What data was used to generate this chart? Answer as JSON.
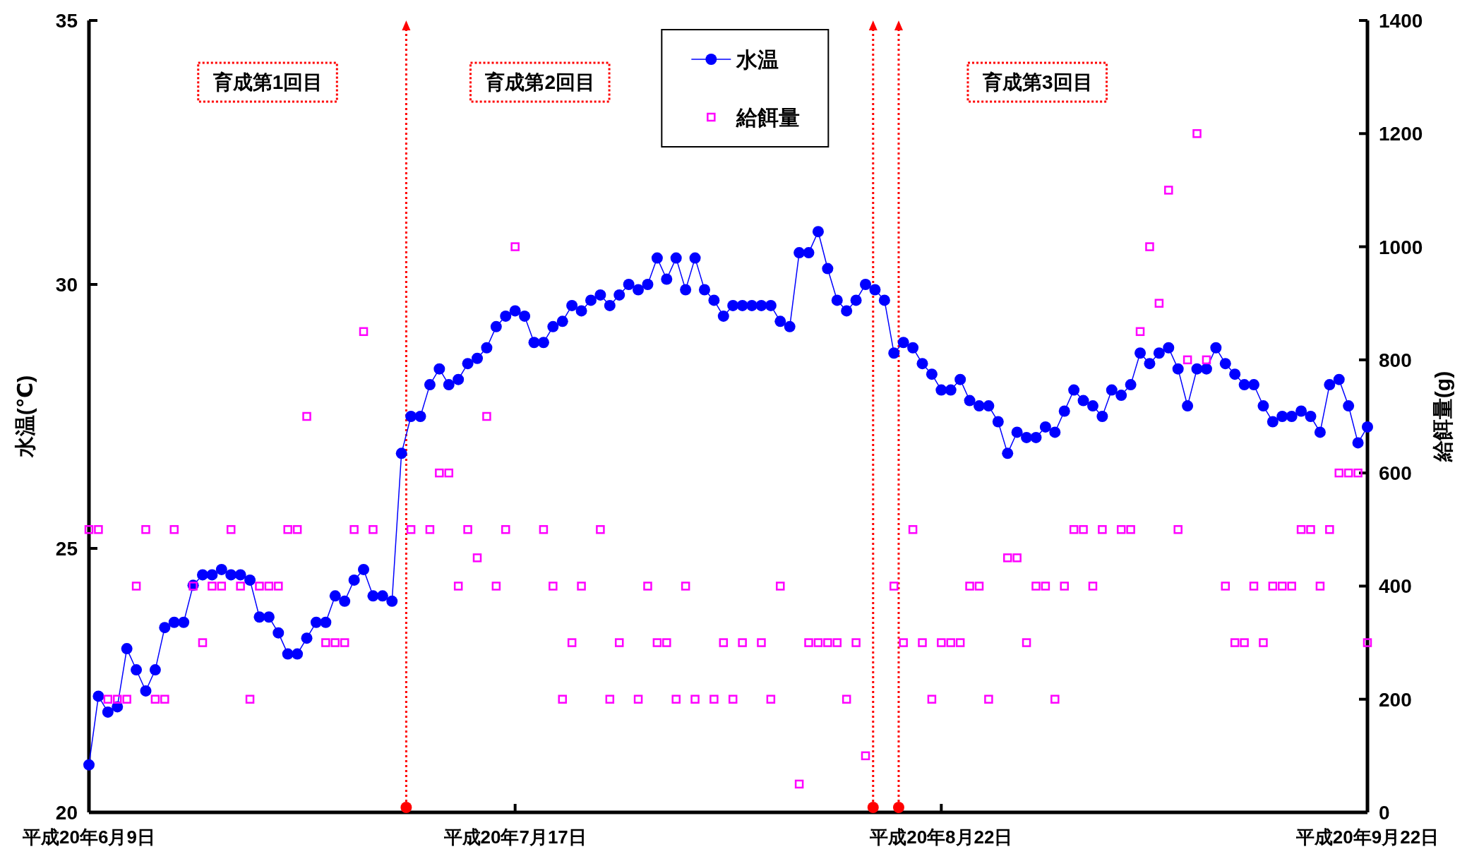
{
  "chart_data": {
    "type": "line",
    "ylabel": "水温(℃)",
    "y2label": "給餌量(g)",
    "categories": [
      "平成20年6月9日",
      null,
      null,
      null,
      null,
      null,
      null,
      null,
      null,
      null,
      null,
      null,
      null,
      null,
      null,
      null,
      null,
      null,
      null,
      null,
      null,
      null,
      null,
      null,
      null,
      null,
      null,
      null,
      null,
      null,
      null,
      null,
      null,
      null,
      null,
      null,
      null,
      null,
      null,
      null,
      null,
      null,
      null,
      null,
      null,
      "平成20年7月17日",
      null,
      null,
      null,
      null,
      null,
      null,
      null,
      null,
      null,
      null,
      null,
      null,
      null,
      null,
      null,
      null,
      null,
      null,
      null,
      null,
      null,
      null,
      null,
      null,
      null,
      null,
      null,
      null,
      null,
      null,
      null,
      null,
      null,
      null,
      null,
      null,
      null,
      null,
      null,
      null,
      null,
      null,
      null,
      null,
      "平成20年8月22日",
      null,
      null,
      null,
      null,
      null,
      null,
      null,
      null,
      null,
      null,
      null,
      null,
      null,
      null,
      null,
      null,
      null,
      null,
      null,
      null,
      null,
      null,
      null,
      null,
      null,
      null,
      null,
      null,
      null,
      null,
      null,
      null,
      null,
      null,
      null,
      null,
      null,
      null,
      null,
      null,
      null,
      null,
      null,
      null,
      "平成20年9月22日"
    ],
    "series": [
      {
        "name": "水温",
        "type": "line",
        "color": "#0000ff",
        "marker": "circle",
        "values": [
          20.9,
          22.2,
          21.9,
          22.0,
          23.1,
          22.7,
          22.3,
          22.7,
          23.5,
          23.6,
          23.6,
          24.3,
          24.5,
          24.5,
          24.6,
          24.5,
          24.5,
          24.4,
          23.7,
          23.7,
          23.4,
          23.0,
          23.0,
          23.3,
          23.6,
          23.6,
          24.1,
          24.0,
          24.4,
          24.6,
          24.1,
          24.1,
          24.0,
          26.8,
          27.5,
          27.5,
          28.1,
          28.4,
          28.1,
          28.2,
          28.5,
          28.6,
          28.8,
          29.2,
          29.4,
          29.5,
          29.4,
          28.9,
          28.9,
          29.2,
          29.3,
          29.6,
          29.5,
          29.7,
          29.8,
          29.6,
          29.8,
          30.0,
          29.9,
          30.0,
          30.5,
          30.1,
          30.5,
          29.9,
          30.5,
          29.9,
          29.7,
          29.4,
          29.6,
          29.6,
          29.6,
          29.6,
          29.6,
          29.3,
          29.2,
          30.6,
          30.6,
          31.0,
          30.3,
          29.7,
          29.5,
          29.7,
          30.0,
          29.9,
          29.7,
          28.7,
          28.9,
          28.8,
          28.5,
          28.3,
          28.0,
          28.0,
          28.2,
          27.8,
          27.7,
          27.7,
          27.4,
          26.8,
          27.2,
          27.1,
          27.1,
          27.3,
          27.2,
          27.6,
          28.0,
          27.8,
          27.7,
          27.5,
          28.0,
          27.9,
          28.1,
          28.7,
          28.5,
          28.7,
          28.8,
          28.4,
          27.7,
          28.4,
          28.4,
          28.8,
          28.5,
          28.3,
          28.1,
          28.1,
          27.7,
          27.4,
          27.5,
          27.5,
          27.6,
          27.5,
          27.2,
          28.1,
          28.2,
          27.7,
          27.0,
          27.3
        ]
      },
      {
        "name": "給餌量",
        "type": "scatter",
        "axis": "y2",
        "color": "#ff00ff",
        "marker": "square",
        "values": [
          500,
          500,
          200,
          200,
          200,
          400,
          500,
          200,
          200,
          500,
          null,
          400,
          300,
          400,
          400,
          500,
          400,
          200,
          400,
          400,
          400,
          500,
          500,
          700,
          null,
          300,
          300,
          300,
          500,
          850,
          500,
          null,
          null,
          null,
          500,
          null,
          500,
          600,
          600,
          400,
          500,
          450,
          700,
          400,
          500,
          1000,
          null,
          null,
          500,
          400,
          200,
          300,
          400,
          null,
          500,
          200,
          300,
          null,
          200,
          400,
          300,
          300,
          200,
          400,
          200,
          null,
          200,
          300,
          200,
          300,
          null,
          300,
          200,
          400,
          null,
          50,
          300,
          300,
          300,
          300,
          200,
          300,
          100,
          null,
          null,
          400,
          300,
          500,
          300,
          200,
          300,
          300,
          300,
          400,
          400,
          200,
          null,
          450,
          450,
          300,
          400,
          400,
          200,
          400,
          500,
          500,
          400,
          500,
          null,
          500,
          500,
          850,
          1000,
          900,
          1100,
          500,
          800,
          1200,
          800,
          null,
          400,
          300,
          300,
          400,
          300,
          400,
          400,
          400,
          500,
          500,
          400,
          500,
          600,
          600,
          600,
          300
        ]
      }
    ],
    "ylim": [
      20,
      35
    ],
    "yticks": [
      20,
      25,
      30,
      35
    ],
    "y2lim": [
      0,
      1400
    ],
    "y2ticks": [
      0,
      200,
      400,
      600,
      800,
      1000,
      1200,
      1400
    ],
    "annotations": [
      "育成第1回目",
      "育成第2回目",
      "育成第3回目"
    ],
    "legend": "top",
    "grid": false
  }
}
